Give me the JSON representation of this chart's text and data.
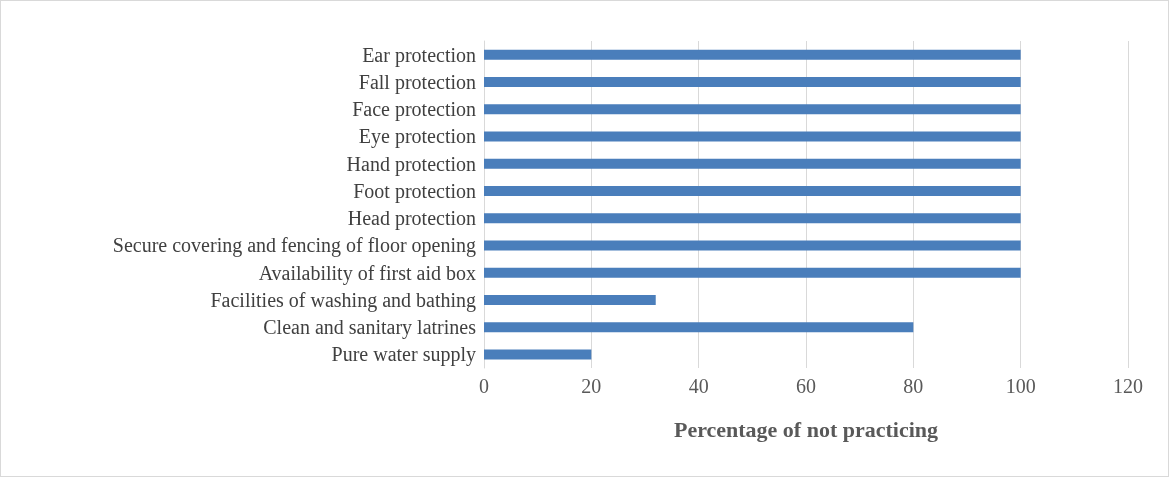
{
  "chart_data": {
    "type": "bar",
    "orientation": "horizontal",
    "xlabel": "Percentage of not practicing",
    "categories": [
      "Ear protection",
      "Fall protection",
      "Face protection",
      "Eye protection",
      "Hand protection",
      "Foot protection",
      "Head protection",
      "Secure covering and fencing of floor opening",
      "Availability of first aid box",
      "Facilities of washing and bathing",
      "Clean and sanitary latrines",
      "Pure water supply"
    ],
    "values": [
      100,
      100,
      100,
      100,
      100,
      100,
      100,
      100,
      100,
      32,
      80,
      20
    ],
    "color": "#4a7ebb",
    "xlim": [
      0,
      120
    ],
    "xticks": [
      0,
      20,
      40,
      60,
      80,
      100,
      120
    ],
    "grid": "x"
  }
}
